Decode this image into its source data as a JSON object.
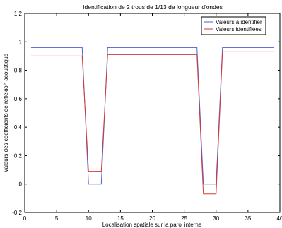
{
  "chart_data": {
    "type": "line",
    "title": "Identification de 2 trous de 1/13 de longueur d'ondes",
    "xlabel": "Localisation spatiale sur la paroi interne",
    "ylabel": "Valeurs des coefficients de reflexion acoustique",
    "xlim": [
      0,
      40
    ],
    "ylim": [
      -0.2,
      1.2
    ],
    "xticks": [
      "0",
      "5",
      "10",
      "15",
      "20",
      "25",
      "30",
      "35",
      "40"
    ],
    "yticks": [
      "-0.2",
      "0",
      "0.2",
      "0.4",
      "0.6",
      "0.8",
      "1",
      "1.2"
    ],
    "grid": false,
    "legend_position": "top-right",
    "series": [
      {
        "name": "Valeurs à identifier",
        "color": "#4c5fd6",
        "x": [
          1,
          9,
          10,
          12,
          13,
          27,
          28,
          30,
          31,
          39
        ],
        "y": [
          0.96,
          0.96,
          0.0,
          0.0,
          0.96,
          0.96,
          0.0,
          0.0,
          0.96,
          0.96
        ]
      },
      {
        "name": "Valeurs identifiées",
        "color": "#d63a3a",
        "x": [
          1,
          9,
          10,
          12,
          13,
          27,
          28,
          30,
          31,
          39
        ],
        "y": [
          0.9,
          0.9,
          0.09,
          0.09,
          0.91,
          0.91,
          -0.07,
          -0.07,
          0.93,
          0.93
        ]
      }
    ]
  }
}
